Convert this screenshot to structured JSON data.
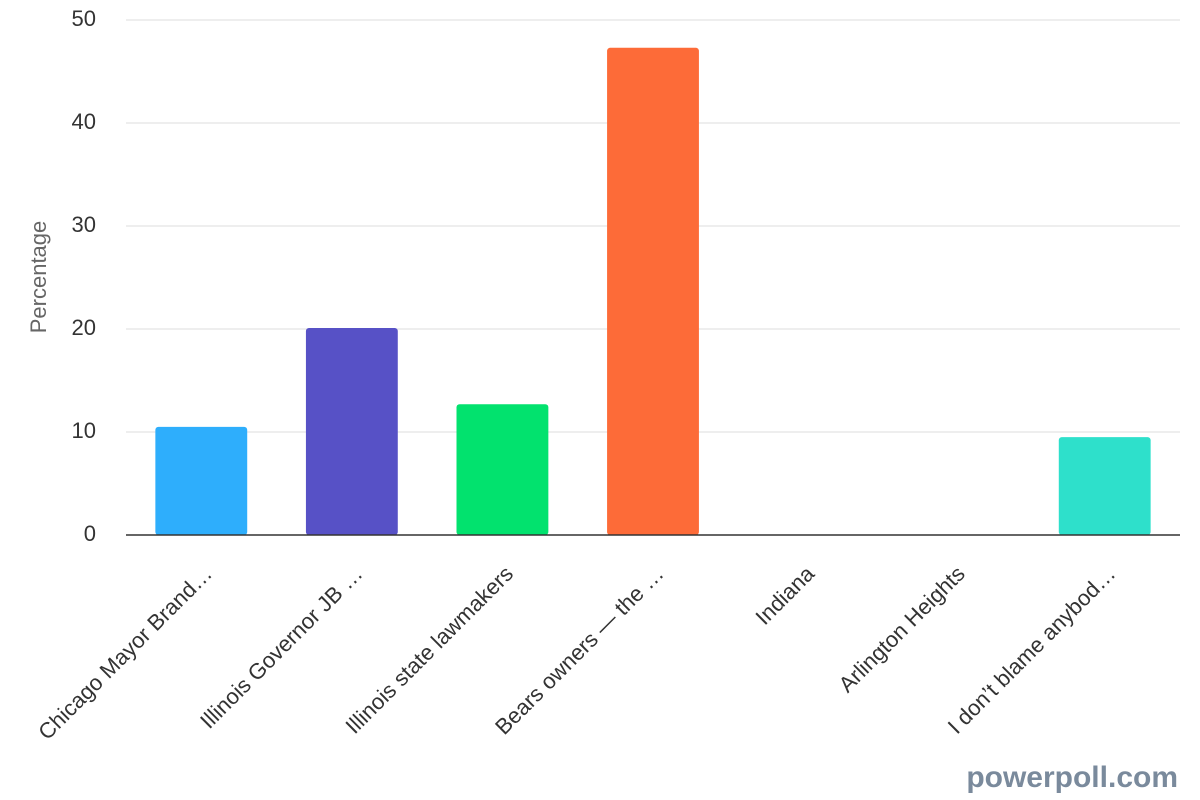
{
  "chart_data": {
    "type": "bar",
    "y_label": "Percentage",
    "categories": [
      "Chicago Mayor Brand…",
      "Illinois Governor JB …",
      "Illinois state lawmakers",
      "Bears owners — the …",
      "Indiana",
      "Arlington Heights",
      "I don’t blame anybod…"
    ],
    "values": [
      10.5,
      20.1,
      12.7,
      47.3,
      0,
      0,
      9.5
    ],
    "colors": [
      "#2eaefc",
      "#5751c6",
      "#02e26e",
      "#fd6b38",
      "#8e44ad",
      "#f1c40f",
      "#2ee0cb"
    ],
    "ylim": [
      0,
      50
    ],
    "yticks": [
      0,
      10,
      20,
      30,
      40,
      50
    ],
    "grid": true,
    "watermark": "powerpoll.com"
  }
}
